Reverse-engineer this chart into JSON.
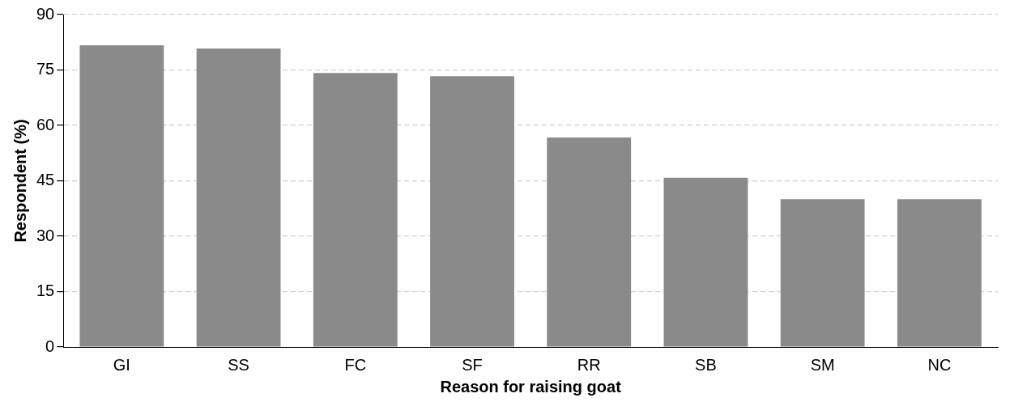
{
  "chart_data": {
    "type": "bar",
    "xlabel": "Reason for raising goat",
    "ylabel": "Respondent (%)",
    "categories": [
      "GI",
      "SS",
      "FC",
      "SF",
      "RR",
      "SB",
      "SM",
      "NC"
    ],
    "values": [
      81.7,
      80.8,
      74.2,
      73.3,
      56.7,
      45.8,
      40,
      40
    ],
    "color": "#8a8a8a",
    "ylim": [
      0,
      90
    ],
    "yticks": [
      0,
      15,
      30,
      45,
      60,
      75,
      90
    ],
    "grid": "y"
  }
}
